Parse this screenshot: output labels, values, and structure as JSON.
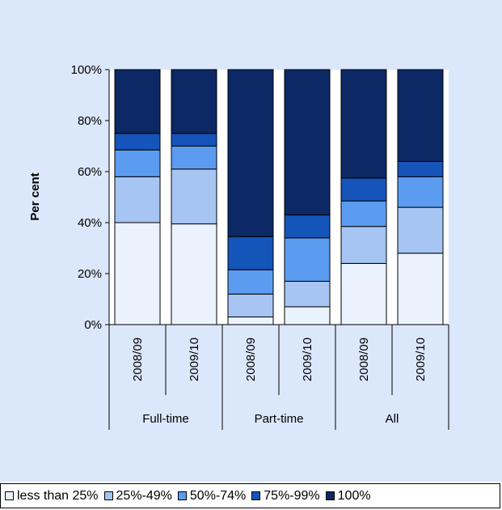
{
  "chart_data": {
    "type": "bar",
    "stacked": true,
    "ylabel": "Per cent",
    "yticks": [
      "0%",
      "20%",
      "40%",
      "60%",
      "80%",
      "100%"
    ],
    "ylim": [
      0,
      100
    ],
    "categories": [
      "2008/09",
      "2009/10",
      "2008/09",
      "2009/10",
      "2008/09",
      "2009/10"
    ],
    "groups": [
      "Full-time",
      "Part-time",
      "All"
    ],
    "series": [
      {
        "name": "less than 25%",
        "color": "#eaf2fe",
        "values": [
          40,
          39.5,
          3,
          7,
          24,
          28
        ]
      },
      {
        "name": "25%-49%",
        "color": "#a6c5f3",
        "values": [
          18,
          21.5,
          9,
          10,
          14.5,
          18
        ]
      },
      {
        "name": "50%-74%",
        "color": "#5c9cf0",
        "values": [
          10.5,
          9,
          9.5,
          17,
          10,
          12
        ]
      },
      {
        "name": "75%-99%",
        "color": "#1554b8",
        "values": [
          6.5,
          5,
          13,
          9,
          9,
          6
        ]
      },
      {
        "name": "100%",
        "color": "#0c2865",
        "values": [
          25,
          25,
          65.5,
          57,
          42.5,
          36
        ]
      }
    ],
    "legend_position": "bottom",
    "grid": false,
    "background_color": "#dbe7fa"
  }
}
